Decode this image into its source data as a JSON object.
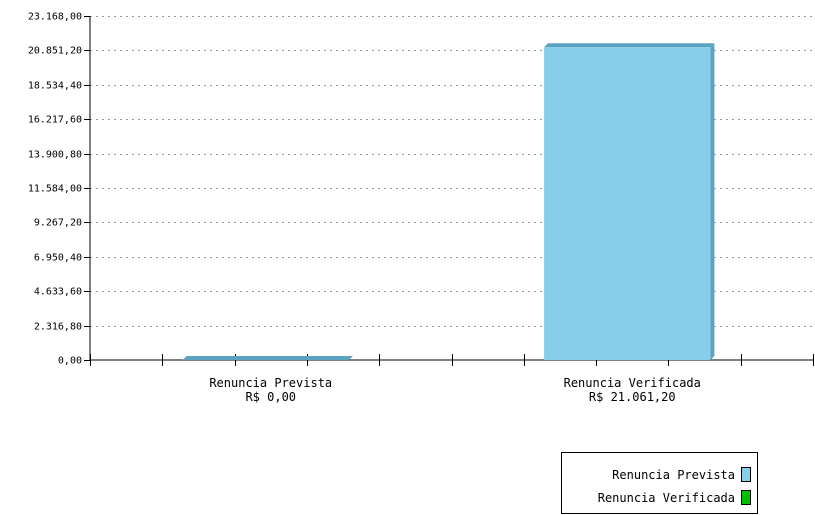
{
  "chart_data": {
    "type": "bar",
    "categories": [
      "Renuncia Prevista",
      "Renuncia Verificada"
    ],
    "category_values": [
      "R$ 0,00",
      "R$ 21.061,20"
    ],
    "values": [
      0,
      21061.2
    ],
    "y_ticks": [
      "0,00",
      "2.316,80",
      "4.633,60",
      "6.950,40",
      "9.267,20",
      "11.584,00",
      "13.900,80",
      "16.217,60",
      "18.534,40",
      "20.851,20",
      "23.168,00"
    ],
    "ylim": [
      0,
      23168
    ],
    "grid": true,
    "legend_position": "bottom-right",
    "legend": [
      {
        "label": "Renuncia Prevista",
        "color": "#87CEEB"
      },
      {
        "label": "Renuncia Verificada",
        "color": "#00C000"
      }
    ],
    "bar_color": "#87CEEB",
    "bar_edge_color": "#5BA3C0"
  }
}
